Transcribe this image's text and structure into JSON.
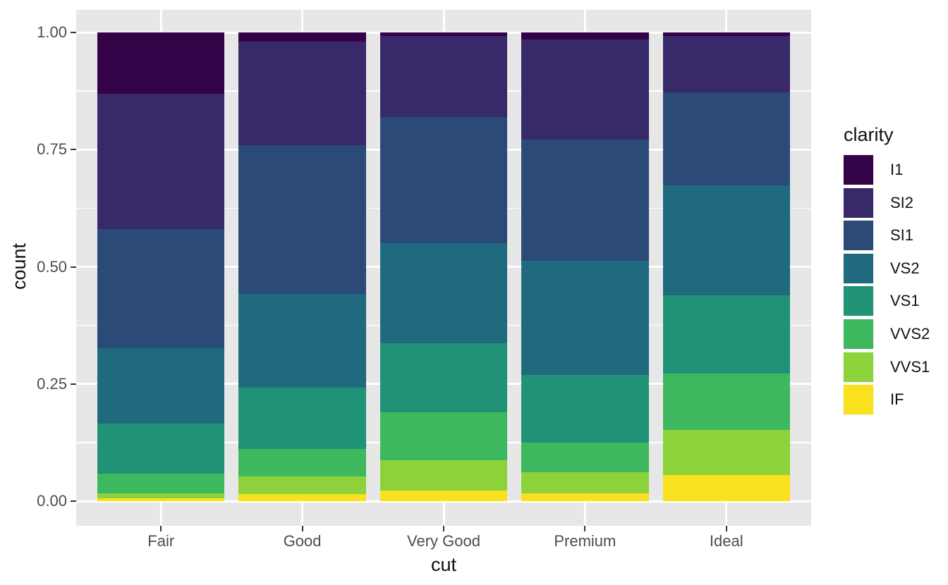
{
  "chart_data": {
    "type": "bar",
    "subtype": "stacked-filled",
    "title": "",
    "xlabel": "cut",
    "ylabel": "count",
    "categories": [
      "Fair",
      "Good",
      "Very Good",
      "Premium",
      "Ideal"
    ],
    "stack_order_bottom_to_top": [
      "IF",
      "VVS1",
      "VVS2",
      "VS1",
      "VS2",
      "SI1",
      "SI2",
      "I1"
    ],
    "series": [
      {
        "name": "I1",
        "color": "#340347",
        "values": [
          0.1304,
          0.0196,
          0.007,
          0.0149,
          0.0068
        ]
      },
      {
        "name": "SI2",
        "color": "#37296A",
        "values": [
          0.2894,
          0.2203,
          0.1738,
          0.2138,
          0.1206
        ]
      },
      {
        "name": "SI1",
        "color": "#2B4A78",
        "values": [
          0.2534,
          0.318,
          0.2682,
          0.2592,
          0.1987
        ]
      },
      {
        "name": "VS2",
        "color": "#206A7F",
        "values": [
          0.1621,
          0.1993,
          0.2144,
          0.2434,
          0.2353
        ]
      },
      {
        "name": "VS1",
        "color": "#209376",
        "values": [
          0.1056,
          0.1321,
          0.1469,
          0.1442,
          0.1665
        ]
      },
      {
        "name": "VVS2",
        "color": "#3DB85F",
        "values": [
          0.0429,
          0.0583,
          0.1022,
          0.0631,
          0.1209
        ]
      },
      {
        "name": "VVS1",
        "color": "#8DD23A",
        "values": [
          0.0106,
          0.0379,
          0.0653,
          0.0447,
          0.095
        ]
      },
      {
        "name": "IF",
        "color": "#F9E11F",
        "values": [
          0.0056,
          0.0145,
          0.0222,
          0.0167,
          0.0562
        ]
      }
    ],
    "y_ticks": [
      {
        "label": "0.00",
        "value": 0.0
      },
      {
        "label": "0.25",
        "value": 0.25
      },
      {
        "label": "0.50",
        "value": 0.5
      },
      {
        "label": "0.75",
        "value": 0.75
      },
      {
        "label": "1.00",
        "value": 1.0
      }
    ],
    "y_minor_ticks": [
      0.125,
      0.375,
      0.625,
      0.875
    ],
    "ylim": [
      0,
      1
    ],
    "grid": "on",
    "legend": {
      "title": "clarity",
      "position": "right"
    },
    "colors": {
      "panel_background": "#E7E7E7",
      "gridline": "#FFFFFF",
      "tick_text": "#4D4D4D",
      "title_text": "#111111"
    }
  }
}
